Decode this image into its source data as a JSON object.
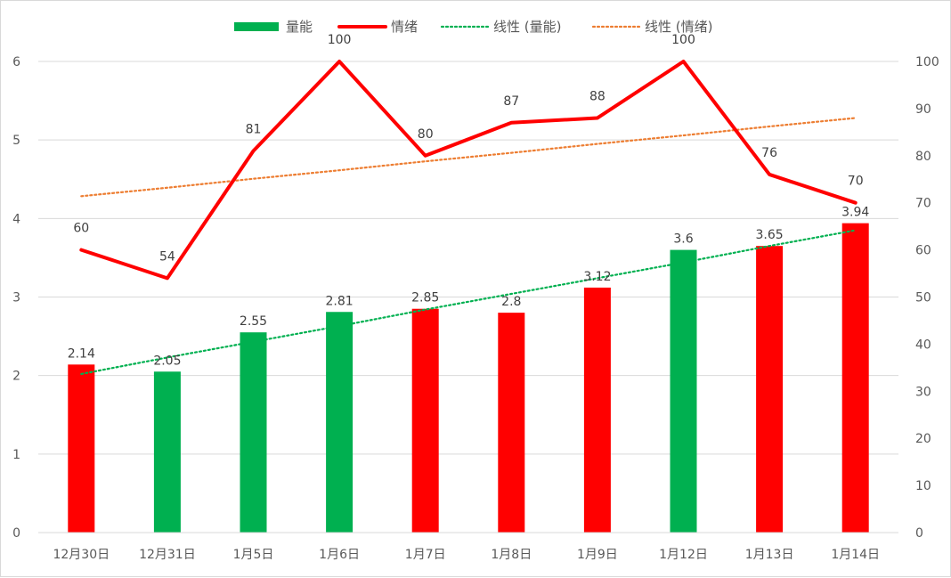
{
  "chart_data": {
    "type": "bar+line",
    "categories": [
      "12月30日",
      "12月31日",
      "1月5日",
      "1月6日",
      "1月7日",
      "1月8日",
      "1月9日",
      "1月12日",
      "1月13日",
      "1月14日"
    ],
    "series": [
      {
        "name": "量能",
        "kind": "bar",
        "axis": "left",
        "values": [
          2.14,
          2.05,
          2.55,
          2.81,
          2.85,
          2.8,
          3.12,
          3.6,
          3.65,
          3.94
        ],
        "value_labels": [
          "2.14",
          "2.05",
          "2.55",
          "2.81",
          "2.85",
          "2.8",
          "3.12",
          "3.6",
          "3.65",
          "3.94"
        ],
        "bar_colors": [
          "#ff0000",
          "#00b050",
          "#00b050",
          "#00b050",
          "#ff0000",
          "#ff0000",
          "#ff0000",
          "#00b050",
          "#ff0000",
          "#ff0000"
        ]
      },
      {
        "name": "情绪",
        "kind": "line",
        "axis": "right",
        "color": "#ff0000",
        "values": [
          60,
          54,
          81,
          100,
          80,
          87,
          88,
          100,
          76,
          70
        ],
        "value_labels": [
          "60",
          "54",
          "81",
          "100",
          "80",
          "87",
          "88",
          "100",
          "76",
          "70"
        ]
      },
      {
        "name": "线性 (量能)",
        "kind": "trendline",
        "of": "量能",
        "axis": "left",
        "color": "#00b050",
        "values": [
          2.02,
          2.23,
          2.43,
          2.63,
          2.84,
          3.04,
          3.24,
          3.44,
          3.65,
          3.85
        ]
      },
      {
        "name": "线性 (情绪)",
        "kind": "trendline",
        "of": "情绪",
        "axis": "right",
        "color": "#ed7d31",
        "values": [
          71.4,
          73.2,
          75.1,
          76.9,
          78.8,
          80.6,
          82.5,
          84.3,
          86.2,
          88.0
        ]
      }
    ],
    "y_left": {
      "min": 0,
      "max": 6,
      "ticks": [
        "0",
        "1",
        "2",
        "3",
        "4",
        "5",
        "6"
      ]
    },
    "y_right": {
      "min": 0,
      "max": 100,
      "ticks": [
        "0",
        "10",
        "20",
        "30",
        "40",
        "50",
        "60",
        "70",
        "80",
        "90",
        "100"
      ]
    },
    "grid": true,
    "legend_position": "top"
  },
  "colors": {
    "bar_green": "#00b050",
    "bar_red": "#ff0000",
    "line_red": "#ff0000",
    "trend_green": "#00b050",
    "trend_orange": "#ed7d31",
    "grid": "#d9d9d9",
    "tick_text": "#595959"
  }
}
